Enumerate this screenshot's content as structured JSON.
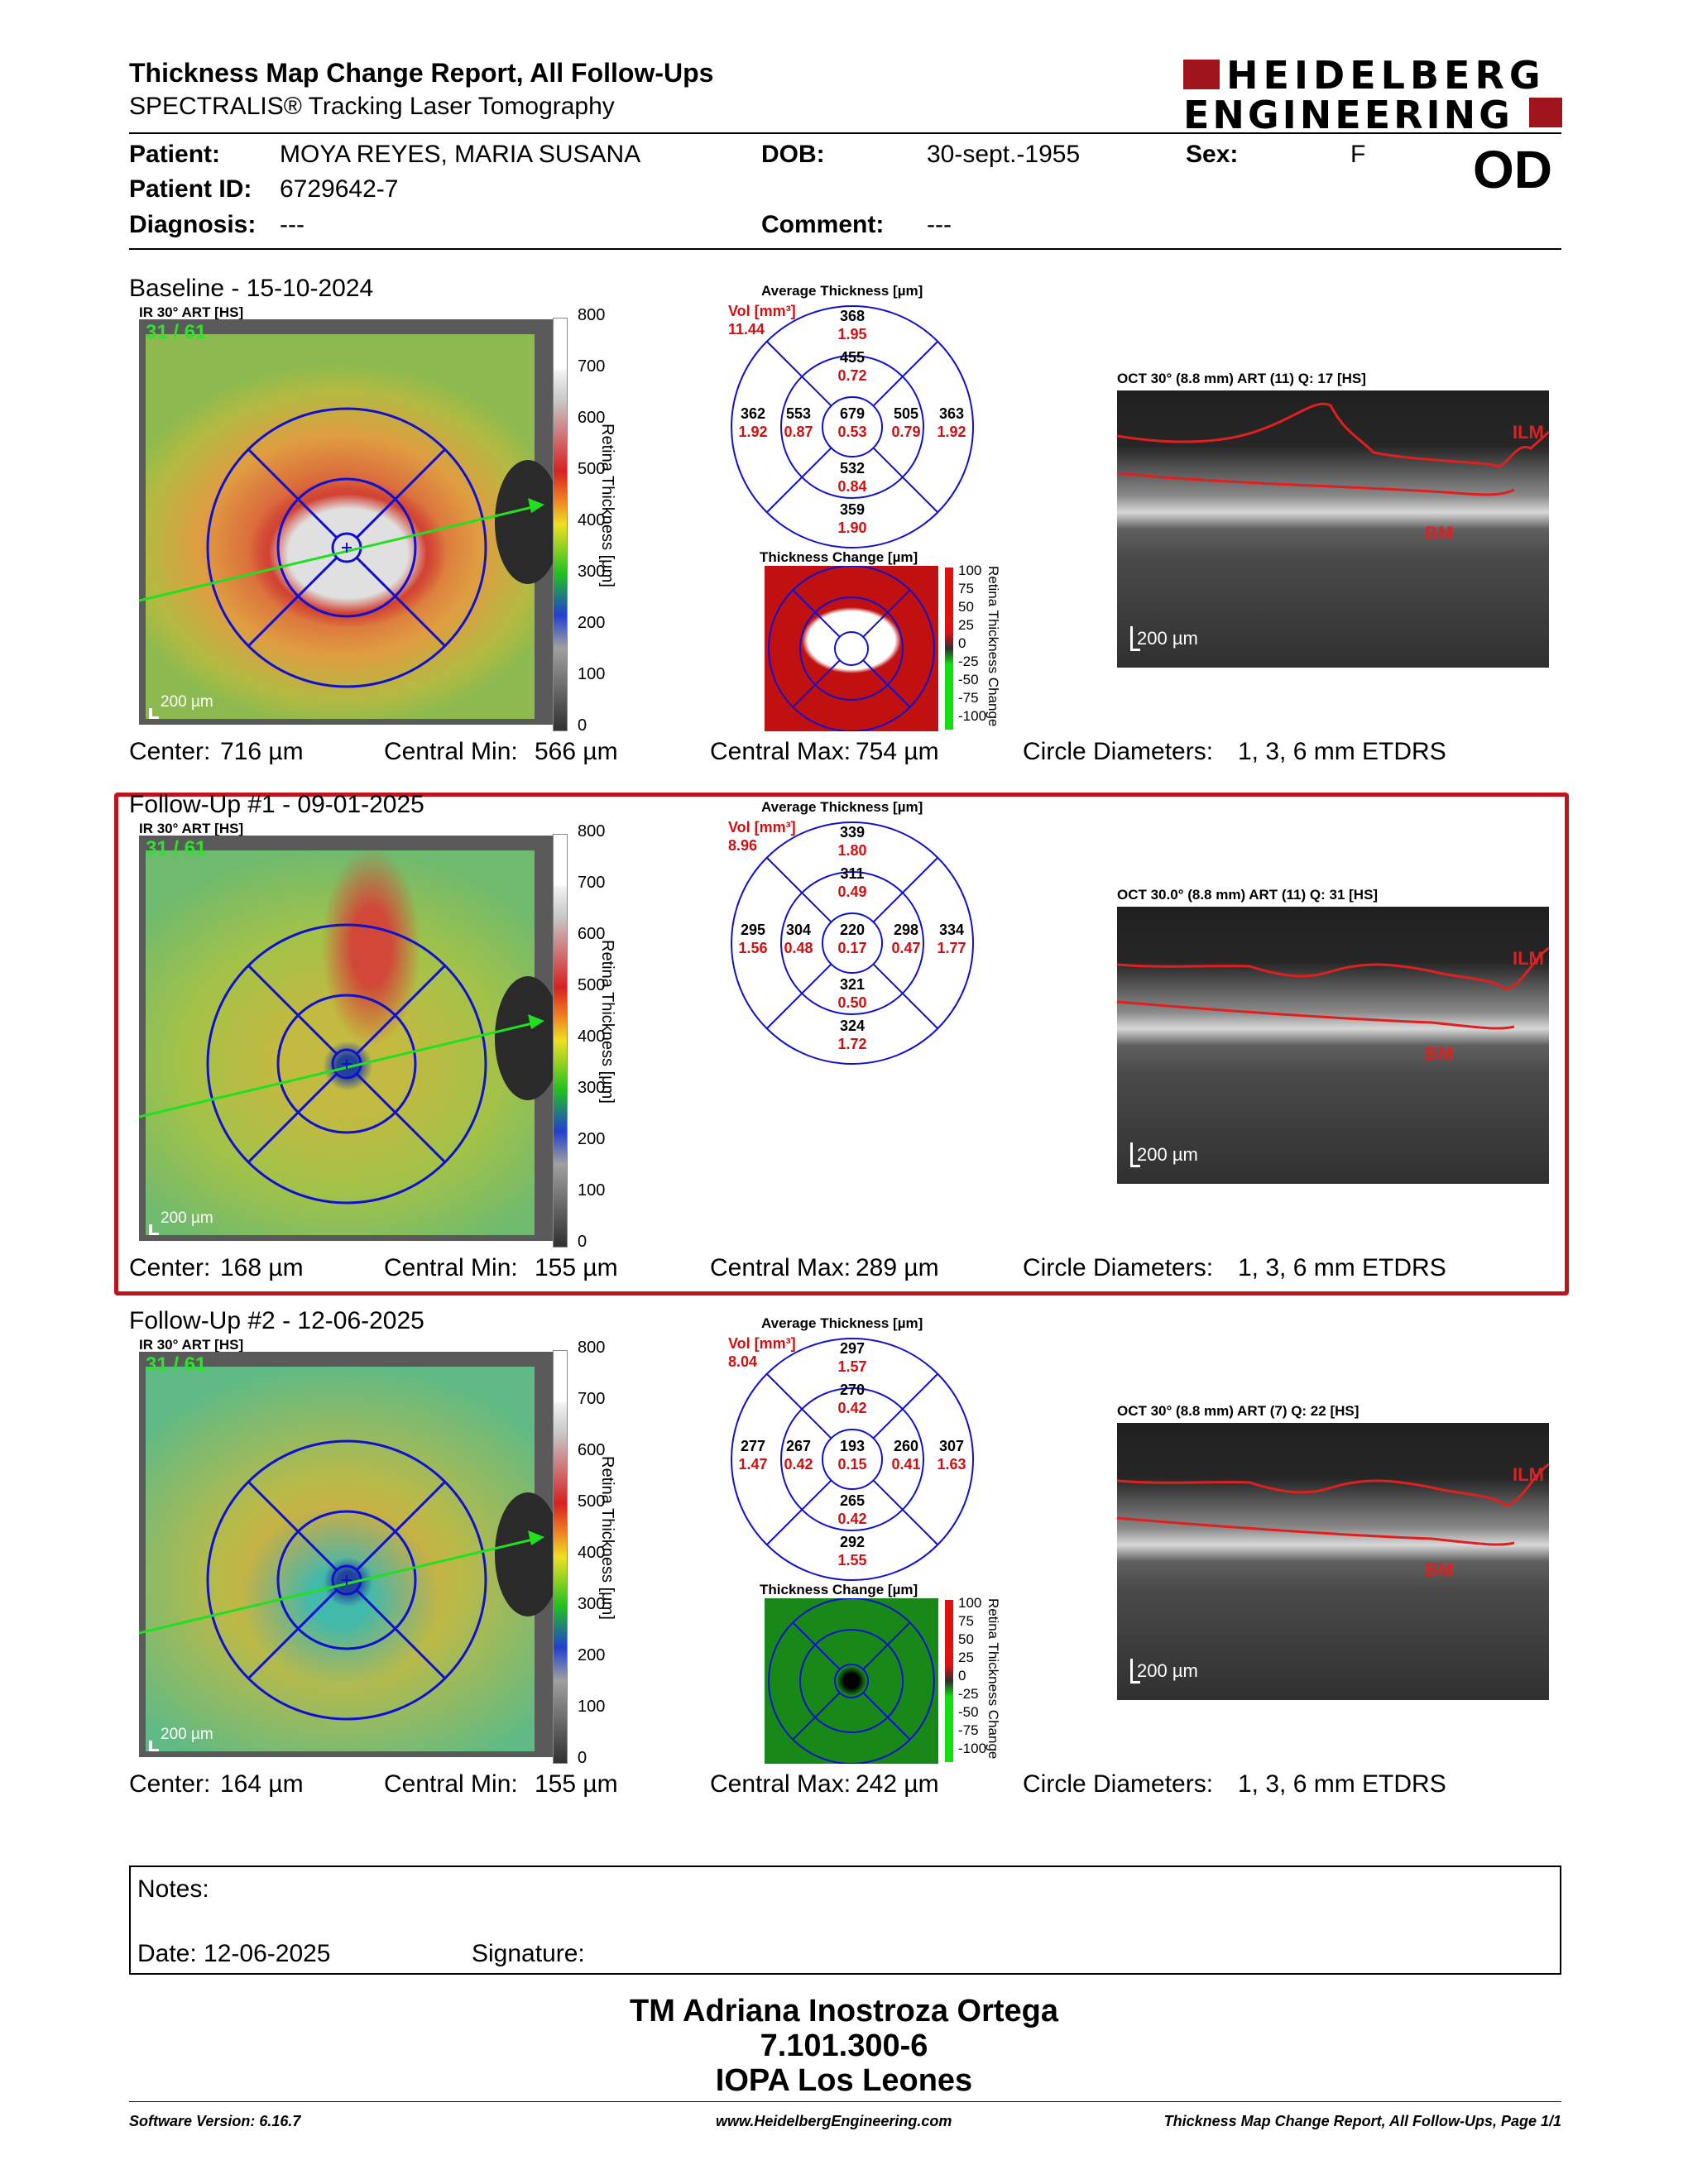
{
  "header": {
    "title": "Thickness Map Change Report, All Follow-Ups",
    "subtitle": "SPECTRALIS® Tracking Laser Tomography",
    "logo_line1": "HEIDELBERG",
    "logo_line2": "ENGINEERING",
    "brand_color": "#a0141e"
  },
  "patient": {
    "name_label": "Patient:",
    "name": "MOYA REYES, MARIA SUSANA",
    "dob_label": "DOB:",
    "dob": "30-sept.-1955",
    "sex_label": "Sex:",
    "sex": "F",
    "id_label": "Patient ID:",
    "id": "6729642-7",
    "diagnosis_label": "Diagnosis:",
    "diagnosis": "---",
    "comment_label": "Comment:",
    "comment": "---",
    "eye": "OD"
  },
  "common": {
    "ir_label": "IR 30° ART [HS]",
    "ir_counter": "31 / 61",
    "scale_label": "200 µm",
    "avg_title": "Average Thickness [µm]",
    "vol_label": "Vol [mm³]",
    "change_title": "Thickness Change [µm]",
    "colorbar_title": "Retina Thickness [µm]",
    "change_bar_title": "Retina Thickness Change",
    "colorbar_ticks": [
      "800",
      "700",
      "600",
      "500",
      "400",
      "300",
      "200",
      "100",
      "0"
    ],
    "change_ticks": [
      "100",
      "75",
      "50",
      "25",
      "0",
      "-25",
      "-50",
      "-75",
      "-100"
    ],
    "center_label": "Center:",
    "cmin_label": "Central Min:",
    "cmax_label": "Central Max:",
    "circle_label": "Circle Diameters:",
    "circle_value": "1, 3, 6 mm ETDRS",
    "ilm": "ILM",
    "bm": "BM"
  },
  "exams": [
    {
      "title": "Baseline - 15-10-2024",
      "oct_label": "OCT 30° (8.8 mm) ART (11) Q: 17 [HS]",
      "vol_total": "11.44",
      "grid": {
        "outer_sup": {
          "t": "368",
          "v": "1.95"
        },
        "inner_sup": {
          "t": "455",
          "v": "0.72"
        },
        "outer_temp": {
          "t": "362",
          "v": "1.92"
        },
        "inner_temp": {
          "t": "553",
          "v": "0.87"
        },
        "center": {
          "t": "679",
          "v": "0.53"
        },
        "inner_nas": {
          "t": "505",
          "v": "0.79"
        },
        "outer_nas": {
          "t": "363",
          "v": "1.92"
        },
        "inner_inf": {
          "t": "532",
          "v": "0.84"
        },
        "outer_inf": {
          "t": "359",
          "v": "1.90"
        }
      },
      "center": "716 µm",
      "cmin": "566 µm",
      "cmax": "754 µm"
    },
    {
      "title": "Follow-Up #1 - 09-01-2025",
      "oct_label": "OCT 30.0° (8.8 mm) ART (11) Q: 31 [HS]",
      "vol_total": "8.96",
      "grid": {
        "outer_sup": {
          "t": "339",
          "v": "1.80"
        },
        "inner_sup": {
          "t": "311",
          "v": "0.49"
        },
        "outer_temp": {
          "t": "295",
          "v": "1.56"
        },
        "inner_temp": {
          "t": "304",
          "v": "0.48"
        },
        "center": {
          "t": "220",
          "v": "0.17"
        },
        "inner_nas": {
          "t": "298",
          "v": "0.47"
        },
        "outer_nas": {
          "t": "334",
          "v": "1.77"
        },
        "inner_inf": {
          "t": "321",
          "v": "0.50"
        },
        "outer_inf": {
          "t": "324",
          "v": "1.72"
        }
      },
      "center": "168 µm",
      "cmin": "155 µm",
      "cmax": "289 µm"
    },
    {
      "title": "Follow-Up #2 - 12-06-2025",
      "oct_label": "OCT 30° (8.8 mm) ART (7) Q: 22 [HS]",
      "vol_total": "8.04",
      "grid": {
        "outer_sup": {
          "t": "297",
          "v": "1.57"
        },
        "inner_sup": {
          "t": "270",
          "v": "0.42"
        },
        "outer_temp": {
          "t": "277",
          "v": "1.47"
        },
        "inner_temp": {
          "t": "267",
          "v": "0.42"
        },
        "center": {
          "t": "193",
          "v": "0.15"
        },
        "inner_nas": {
          "t": "260",
          "v": "0.41"
        },
        "outer_nas": {
          "t": "307",
          "v": "1.63"
        },
        "inner_inf": {
          "t": "265",
          "v": "0.42"
        },
        "outer_inf": {
          "t": "292",
          "v": "1.55"
        }
      },
      "center": "164 µm",
      "cmin": "155 µm",
      "cmax": "242 µm"
    }
  ],
  "notes": {
    "notes_label": "Notes:",
    "date_label": "Date: 12-06-2025",
    "signature_label": "Signature:"
  },
  "signer": {
    "name": "TM Adriana Inostroza Ortega",
    "id": "7.101.300-6",
    "org": "IOPA Los Leones"
  },
  "footer": {
    "software": "Software Version: 6.16.7",
    "url": "www.HeidelbergEngineering.com",
    "page": "Thickness Map Change Report, All Follow-Ups, Page 1/1"
  }
}
